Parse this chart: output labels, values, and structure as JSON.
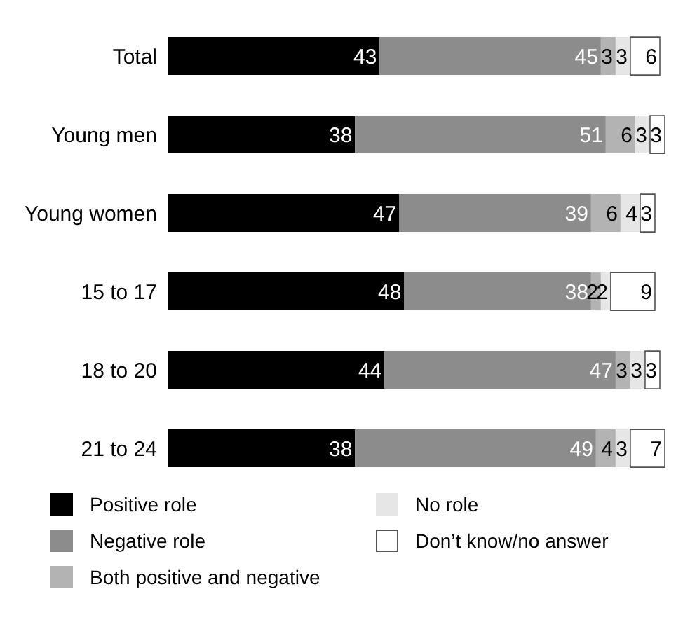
{
  "chart_data": {
    "type": "bar",
    "orientation": "horizontal",
    "stacked": true,
    "data_labels": true,
    "legend": "bottom",
    "categories": [
      "Total",
      "Young men",
      "Young women",
      "15 to 17",
      "18 to 20",
      "21 to 24"
    ],
    "series": [
      {
        "name": "Positive role",
        "color": "#000000",
        "values": [
          43,
          38,
          47,
          48,
          44,
          38
        ]
      },
      {
        "name": "Negative role",
        "color": "#8c8c8c",
        "values": [
          45,
          51,
          39,
          38,
          47,
          49
        ]
      },
      {
        "name": "Both positive and negative",
        "color": "#b3b3b3",
        "values": [
          3,
          6,
          6,
          2,
          3,
          4
        ]
      },
      {
        "name": "No role",
        "color": "#e6e6e6",
        "values": [
          3,
          3,
          4,
          2,
          3,
          3
        ]
      },
      {
        "name": "Don’t know/no answer",
        "color": "#ffffff",
        "values": [
          6,
          3,
          3,
          9,
          3,
          7
        ]
      }
    ]
  }
}
